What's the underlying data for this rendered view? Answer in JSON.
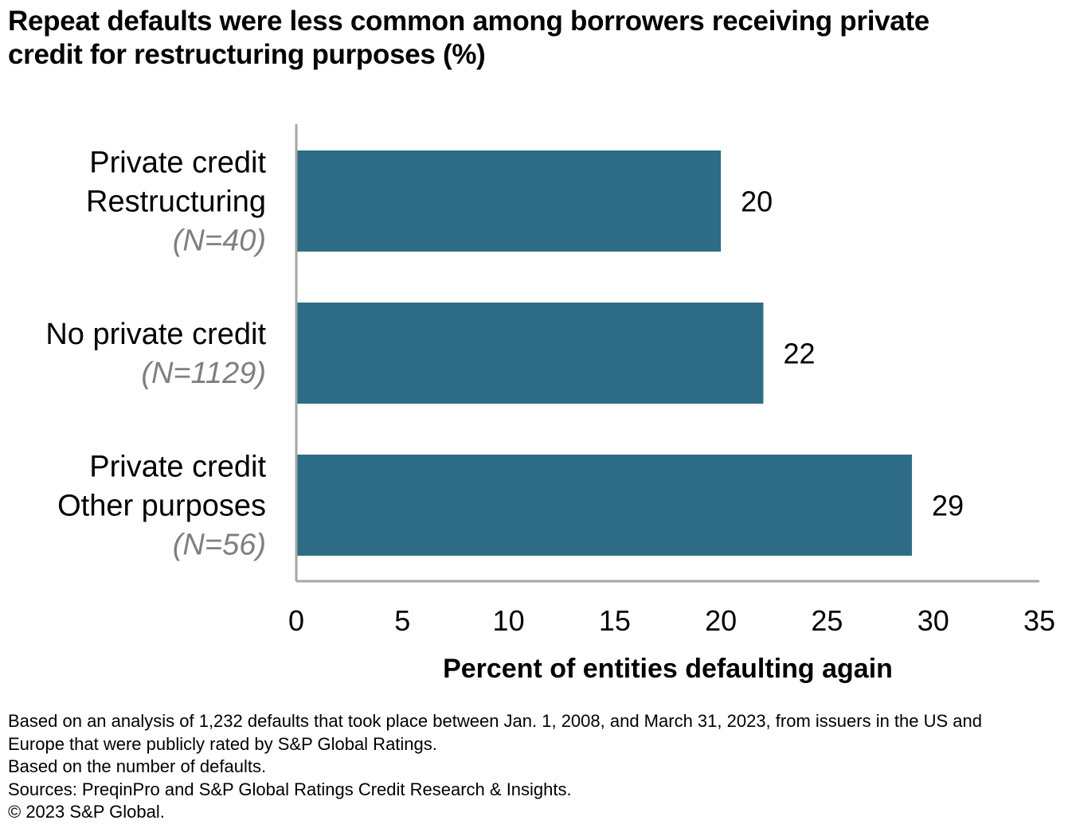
{
  "title_lines": [
    "Repeat defaults were less common among borrowers receiving private",
    "credit for restructuring purposes (%)"
  ],
  "chart_data": {
    "type": "bar",
    "orientation": "horizontal",
    "title": "Repeat defaults were less common among borrowers receiving private credit for restructuring purposes (%)",
    "categories": [
      {
        "lines": [
          "Private credit",
          "Restructuring"
        ],
        "n": "(N=40)"
      },
      {
        "lines": [
          "No private credit"
        ],
        "n": "(N=1129)"
      },
      {
        "lines": [
          "Private credit",
          "Other purposes"
        ],
        "n": "(N=56)"
      }
    ],
    "values": [
      20,
      22,
      29
    ],
    "value_labels": [
      "20",
      "22",
      "29"
    ],
    "xlabel": "Percent of entities defaulting again",
    "ylabel": "",
    "xlim": [
      0,
      35
    ],
    "xticks": [
      0,
      5,
      10,
      15,
      20,
      25,
      30,
      35
    ],
    "grid": false,
    "legend": "none",
    "bar_color": "#2e6c86",
    "axis_color": "#a6a6a6",
    "n_label_color": "#7f7f7f"
  },
  "footnotes": [
    "Based on an analysis of 1,232 defaults that took place between Jan. 1, 2008, and March 31, 2023, from issuers in the US and",
    "Europe that were publicly rated by S&P Global Ratings.",
    "Based on the number of defaults.",
    "Sources: PreqinPro and S&P Global Ratings Credit Research & Insights.",
    "© 2023 S&P Global."
  ]
}
